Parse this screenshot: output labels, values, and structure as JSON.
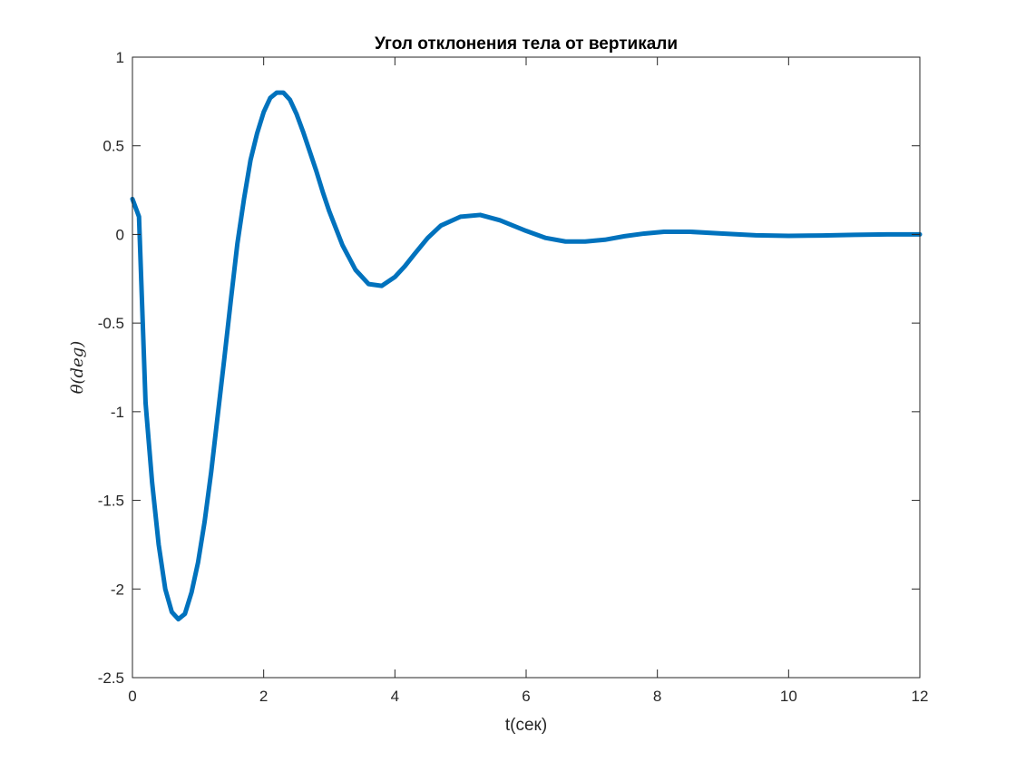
{
  "chart_data": {
    "type": "line",
    "title": "Угол отклонения тела от вертикали",
    "xlabel": "t(сек)",
    "ylabel": "θ(deg)",
    "xlim": [
      0,
      12
    ],
    "ylim": [
      -2.5,
      1
    ],
    "xticks": [
      "0",
      "2",
      "4",
      "6",
      "8",
      "10",
      "12"
    ],
    "yticks": [
      "1",
      "0.5",
      "0",
      "-0.5",
      "-1",
      "-1.5",
      "-2",
      "-2.5"
    ],
    "grid": false,
    "line_color": "#0072BD",
    "series": [
      {
        "x": [
          0,
          0.1,
          0.2,
          0.3,
          0.4,
          0.5,
          0.6,
          0.7,
          0.8,
          0.9,
          1.0,
          1.1,
          1.2,
          1.3,
          1.4,
          1.5,
          1.6,
          1.7,
          1.8,
          1.9,
          2.0,
          2.1,
          2.2,
          2.3,
          2.4,
          2.5,
          2.6,
          2.7,
          2.8,
          2.9,
          3.0,
          3.2,
          3.4,
          3.6,
          3.8,
          4.0,
          4.15,
          4.3,
          4.5,
          4.7,
          5.0,
          5.3,
          5.6,
          5.8,
          6.0,
          6.3,
          6.6,
          6.9,
          7.2,
          7.5,
          7.8,
          8.1,
          8.5,
          9.0,
          9.5,
          10.0,
          10.5,
          11.0,
          11.5,
          12.0
        ],
        "y": [
          0.2,
          0.1,
          -0.95,
          -1.4,
          -1.75,
          -2.0,
          -2.13,
          -2.17,
          -2.14,
          -2.02,
          -1.85,
          -1.62,
          -1.34,
          -1.02,
          -0.7,
          -0.37,
          -0.05,
          0.2,
          0.42,
          0.57,
          0.69,
          0.77,
          0.8,
          0.8,
          0.76,
          0.68,
          0.58,
          0.47,
          0.36,
          0.24,
          0.13,
          -0.06,
          -0.2,
          -0.28,
          -0.29,
          -0.24,
          -0.18,
          -0.11,
          -0.02,
          0.05,
          0.1,
          0.11,
          0.08,
          0.05,
          0.02,
          -0.02,
          -0.04,
          -0.04,
          -0.03,
          -0.01,
          0.005,
          0.015,
          0.015,
          0.005,
          -0.005,
          -0.008,
          -0.006,
          -0.002,
          0.0,
          0.0
        ]
      }
    ]
  }
}
